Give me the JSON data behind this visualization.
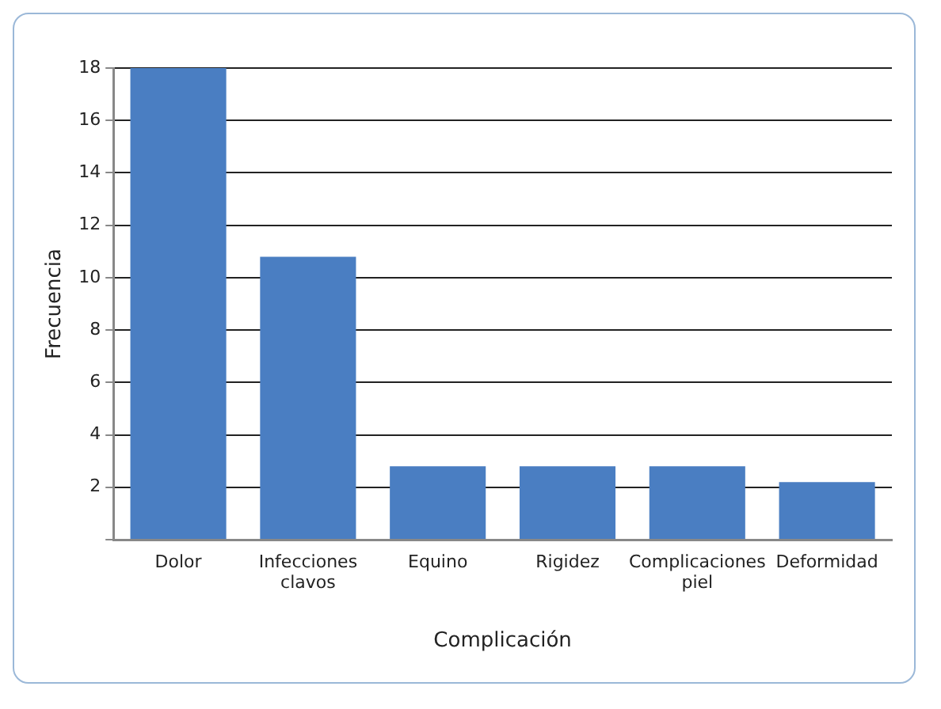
{
  "chart_data": {
    "type": "bar",
    "xlabel": "Complicación",
    "ylabel": "Frecuencia",
    "categories": [
      "Dolor",
      "Infecciones clavos",
      "Equino",
      "Rigidez",
      "Complicaciones piel",
      "Deformidad"
    ],
    "values": [
      18,
      10.8,
      2.8,
      2.8,
      2.8,
      2.2
    ],
    "color": "#4a7ec2",
    "ylim": [
      0,
      18
    ],
    "yticks": [
      {
        "value": 0,
        "label": null
      },
      2,
      4,
      6,
      8,
      10,
      12,
      14,
      16,
      18
    ],
    "grid": "y"
  }
}
